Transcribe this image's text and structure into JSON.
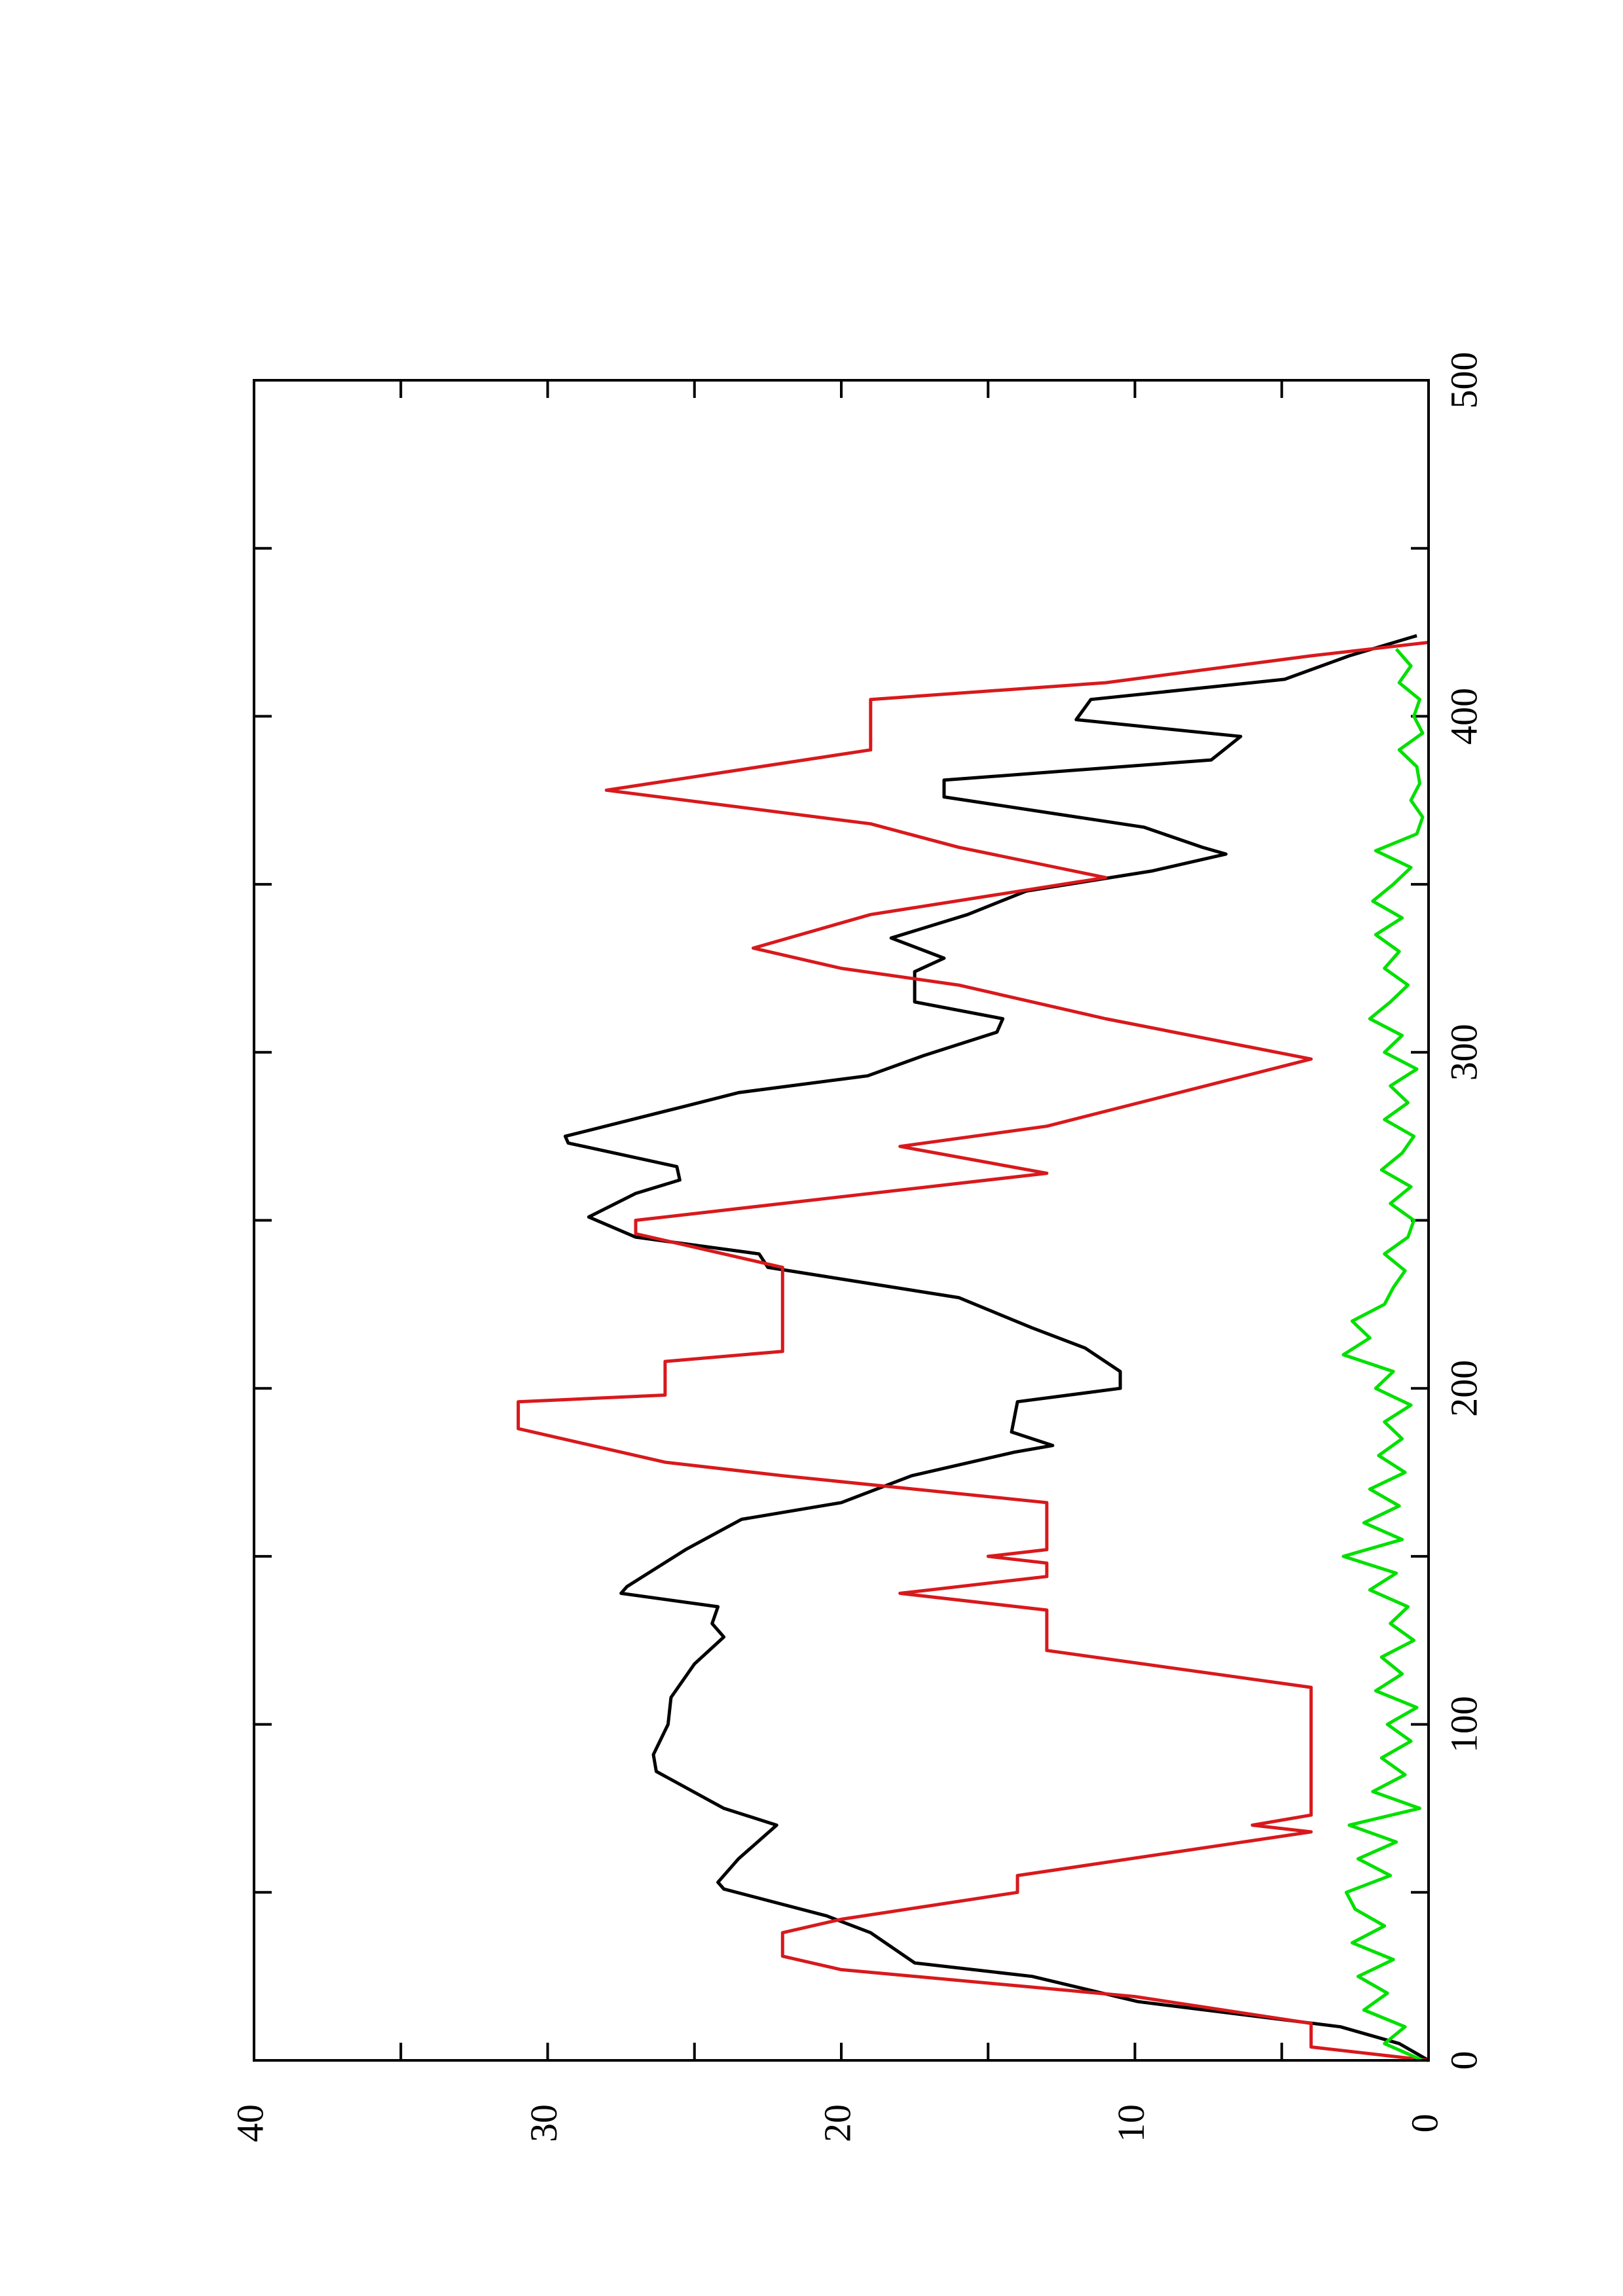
{
  "chart_data": {
    "type": "line",
    "rotated": true,
    "xlim": [
      0,
      500
    ],
    "xticks": [
      0,
      100,
      200,
      300,
      400,
      500
    ],
    "xminorticks": [
      50,
      150,
      250,
      350,
      450
    ],
    "ylim": [
      0,
      40
    ],
    "yticks": [
      0,
      10,
      20,
      30,
      40
    ],
    "yminorticks": [
      5,
      15,
      25,
      35
    ],
    "series": [
      {
        "color": "#000000",
        "x": [
          0,
          5,
          10,
          17.5,
          25,
          29,
          38,
          43,
          51,
          53,
          60,
          70,
          75,
          86,
          91,
          100,
          108,
          118,
          126,
          130,
          135,
          139,
          141,
          152,
          161,
          166,
          174,
          181,
          183,
          187,
          196,
          200,
          205,
          212,
          218,
          227,
          236,
          240,
          245,
          251,
          258,
          262,
          266,
          273,
          275,
          284,
          288,
          293,
          299,
          306,
          310,
          315,
          324,
          328,
          334,
          341,
          348,
          354,
          359,
          361,
          367,
          376,
          381,
          387,
          394,
          399,
          405,
          411,
          418,
          424
        ],
        "values": [
          0,
          1,
          3,
          9.9,
          13.5,
          17.5,
          19,
          20.5,
          24,
          24.2,
          23.5,
          22.2,
          24,
          26.3,
          26.4,
          25.9,
          25.8,
          25,
          24,
          24.4,
          24.2,
          27.5,
          27.3,
          25.3,
          23.4,
          20,
          17.6,
          14.1,
          12.8,
          14.2,
          14,
          10.5,
          10.5,
          11.7,
          13.5,
          16,
          22.5,
          22.8,
          27,
          28.6,
          27,
          25.5,
          25.6,
          29.3,
          29.4,
          25.3,
          23.5,
          19.1,
          17.2,
          14.7,
          14.5,
          17.5,
          17.5,
          16.5,
          18.3,
          15.7,
          13.7,
          9.4,
          6.9,
          7.7,
          9.7,
          16.5,
          16.5,
          7.4,
          6.4,
          12,
          11.5,
          4.9,
          2.7,
          0.4
        ]
      },
      {
        "color": "#d8191c",
        "x": [
          0,
          4,
          11,
          19,
          27,
          31,
          38,
          42,
          50,
          55,
          68,
          70,
          73,
          111,
          122,
          134,
          139,
          144,
          148,
          150,
          152,
          156,
          166,
          174,
          178,
          188,
          196,
          198,
          208,
          211,
          236,
          246,
          250,
          264,
          272,
          278,
          298,
          310,
          320,
          325,
          331,
          341,
          352,
          361,
          368,
          378,
          390,
          405,
          410,
          418,
          422
        ],
        "values": [
          0,
          4,
          4,
          10,
          20,
          22,
          22,
          20,
          14,
          14,
          4,
          6,
          4,
          4,
          13,
          13,
          18,
          13,
          13,
          15,
          13,
          13,
          13,
          22,
          26,
          31,
          31,
          26,
          26,
          22,
          22,
          27,
          27,
          13,
          18,
          13,
          4,
          11,
          16,
          20,
          23,
          19,
          11,
          16,
          19,
          28,
          19,
          19,
          11,
          4,
          0
        ]
      },
      {
        "color": "#00e000",
        "x": [
          0,
          5,
          10,
          15,
          20,
          25,
          30,
          35,
          40,
          45,
          50,
          55,
          60,
          65,
          70,
          75,
          80,
          85,
          90,
          95,
          100,
          105,
          110,
          115,
          120,
          125,
          130,
          135,
          140,
          145,
          150,
          155,
          160,
          165,
          170,
          175,
          180,
          185,
          190,
          195,
          200,
          205,
          210,
          215,
          220,
          225,
          230,
          235,
          240,
          245,
          250,
          255,
          260,
          265,
          270,
          275,
          280,
          285,
          290,
          295,
          300,
          305,
          310,
          315,
          320,
          325,
          330,
          335,
          340,
          345,
          350,
          355,
          360,
          365,
          370,
          375,
          380,
          385,
          390,
          395,
          400,
          405,
          410,
          415,
          420
        ],
        "values": [
          0.2,
          1.5,
          0.8,
          2.2,
          1.4,
          2.4,
          1.2,
          2.6,
          1.5,
          2.5,
          2.8,
          1.3,
          2.4,
          1.1,
          2.7,
          0.3,
          1.9,
          0.8,
          1.6,
          0.6,
          1.4,
          0.4,
          1.8,
          0.9,
          1.6,
          0.5,
          1.3,
          0.7,
          2.0,
          1.1,
          2.9,
          0.9,
          2.2,
          1.0,
          2.0,
          0.8,
          1.7,
          0.9,
          1.5,
          0.6,
          1.8,
          1.2,
          2.9,
          2.0,
          2.6,
          1.5,
          1.2,
          0.8,
          1.5,
          0.7,
          0.5,
          1.3,
          0.6,
          1.6,
          0.9,
          0.5,
          1.5,
          0.7,
          1.3,
          0.4,
          1.5,
          0.9,
          2.0,
          1.3,
          0.7,
          1.5,
          1.0,
          1.8,
          0.9,
          1.9,
          1.2,
          0.6,
          1.8,
          0.4,
          0.2,
          0.6,
          0.3,
          0.4,
          1.0,
          0.2,
          0.5,
          0.3,
          1.0,
          0.6,
          1.1
        ]
      }
    ]
  }
}
